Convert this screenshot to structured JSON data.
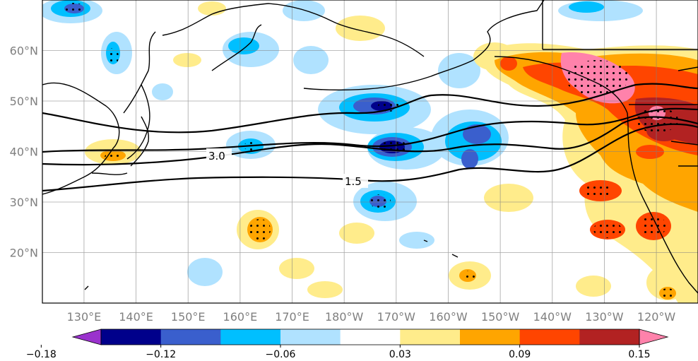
{
  "map": {
    "lat_labels": [
      "60°N",
      "50°N",
      "40°N",
      "30°N",
      "20°N"
    ],
    "lat_values": [
      60,
      50,
      40,
      30,
      20
    ],
    "lon_labels": [
      "130°E",
      "140°E",
      "150°E",
      "160°E",
      "170°E",
      "180°W",
      "170°W",
      "160°W",
      "150°W",
      "140°W",
      "130°W",
      "120°W"
    ],
    "lon_values": [
      130,
      140,
      150,
      160,
      170,
      180,
      190,
      200,
      210,
      220,
      230,
      240
    ],
    "lon_range": [
      122,
      248
    ],
    "lat_range": [
      10,
      70
    ],
    "grid": true,
    "contour_labels": [
      "3.0",
      "1.5"
    ]
  },
  "colorbar": {
    "colors": [
      "#9a32cd",
      "#00008b",
      "#3a5fcd",
      "#00bfff",
      "#b0e2ff",
      "#ffffff",
      "#ffec8b",
      "#ffa500",
      "#ff4500",
      "#b22222",
      "#ff82ab"
    ],
    "tick_labels": [
      "−0.18",
      "−0.12",
      "−0.06",
      "0.03",
      "0.09",
      "0.15"
    ],
    "tick_values": [
      -0.18,
      -0.12,
      -0.06,
      0.03,
      0.09,
      0.15
    ],
    "bounds": [
      -0.18,
      -0.15,
      -0.12,
      -0.09,
      -0.06,
      -0.03,
      0.03,
      0.06,
      0.09,
      0.12,
      0.15,
      0.18
    ]
  }
}
